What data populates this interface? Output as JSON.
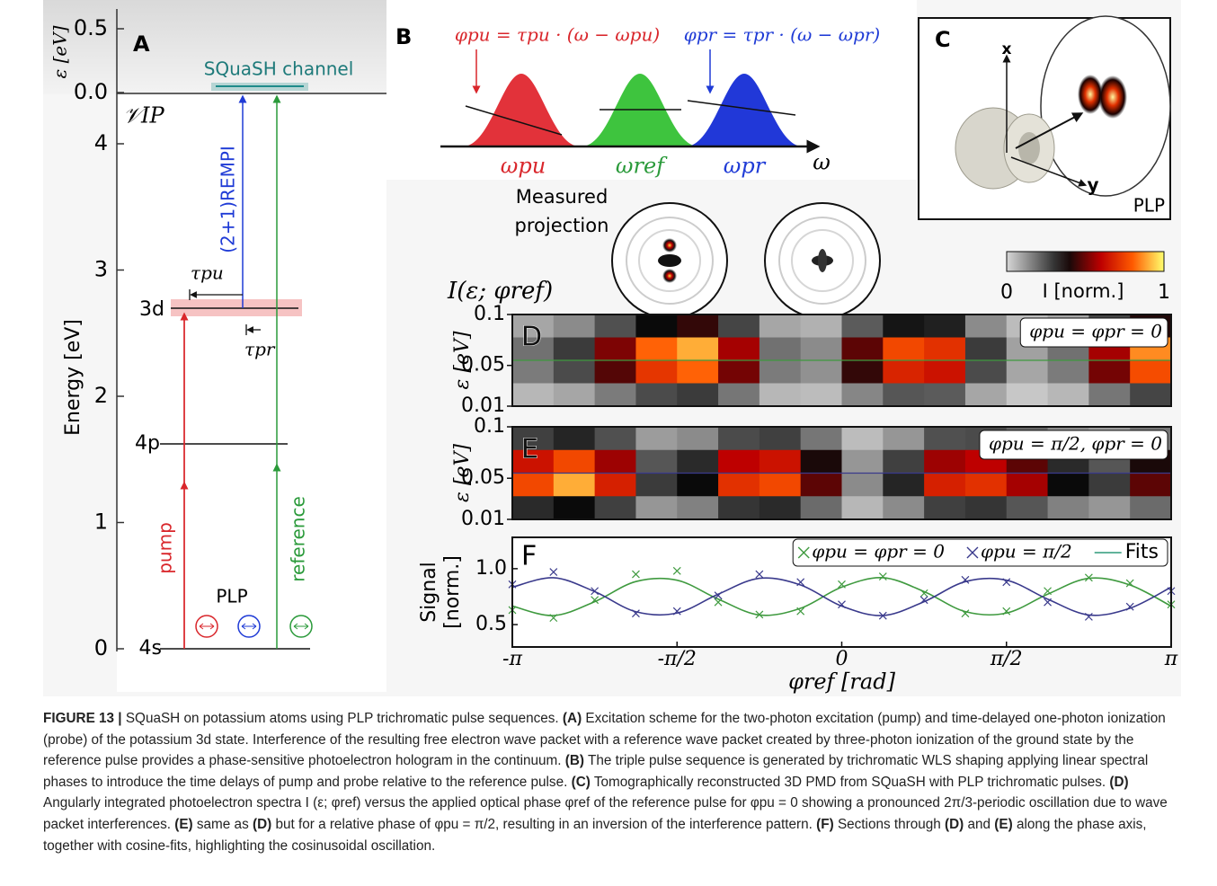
{
  "panel_a": {
    "label": "A",
    "y_label": "Energy [eV]",
    "energy_ticks": [
      0,
      1,
      2,
      3,
      4
    ],
    "eps_label": "ε [eV]",
    "eps_ticks": [
      {
        "value": 0,
        "label": "0.0"
      },
      {
        "value": 0.5,
        "label": "0.5"
      }
    ],
    "ionization_label": "𝒱IP",
    "channel_label": "SQuaSH channel",
    "rempi_label": "(2+1)REMPI",
    "tau_pu": "τpu",
    "tau_pr": "τpr",
    "levels": [
      "3d",
      "4p",
      "4s"
    ],
    "pump_label": "pump",
    "reference_label": "reference",
    "plp_label": "PLP"
  },
  "panel_b": {
    "label": "B",
    "phase_pu": "φpu = τpu · (ω − ωpu)",
    "phase_pr": "φpr = τpr · (ω − ωpr)",
    "omega_pu": "ωpu",
    "omega_ref": "ωref",
    "omega_pr": "ωpr",
    "omega": "ω",
    "measured": [
      "Measured",
      "projection"
    ]
  },
  "panel_c": {
    "label": "C",
    "x_axis": "x",
    "y_axis": "y",
    "plp_label": "PLP"
  },
  "spectrum_label": "I(ε; φref)",
  "colorbar": {
    "label": "I [norm.]",
    "ticks": [
      0,
      1
    ]
  },
  "chart_data": [
    {
      "type": "heatmap",
      "label": "D",
      "annotation": "φpu = φpr = 0",
      "y_label": "ε [eV]",
      "ylim": [
        0.01,
        0.1
      ],
      "yticks": [
        0.1,
        0.05,
        0.01
      ],
      "xlim": [
        -3.1416,
        3.1416
      ],
      "z": [
        [
          0.09,
          0.14,
          0.25,
          0.38,
          0.43,
          0.27,
          0.09,
          0.07,
          0.23,
          0.36,
          0.34,
          0.14,
          0.05,
          0.09,
          0.27,
          0.41
        ],
        [
          0.19,
          0.29,
          0.52,
          0.81,
          0.9,
          0.57,
          0.19,
          0.14,
          0.48,
          0.76,
          0.71,
          0.29,
          0.1,
          0.19,
          0.57,
          0.86
        ],
        [
          0.17,
          0.26,
          0.47,
          0.72,
          0.81,
          0.51,
          0.17,
          0.13,
          0.43,
          0.68,
          0.64,
          0.26,
          0.09,
          0.17,
          0.51,
          0.77
        ],
        [
          0.06,
          0.09,
          0.17,
          0.26,
          0.29,
          0.18,
          0.06,
          0.05,
          0.15,
          0.24,
          0.23,
          0.09,
          0.03,
          0.06,
          0.18,
          0.27
        ]
      ]
    },
    {
      "type": "heatmap",
      "label": "E",
      "annotation": "φpu = π/2, φpr = 0",
      "y_label": "ε [eV]",
      "ylim": [
        0.01,
        0.1
      ],
      "yticks": [
        0.1,
        0.05,
        0.01
      ],
      "xlim": [
        -3.1416,
        3.1416
      ],
      "z": [
        [
          0.28,
          0.33,
          0.25,
          0.11,
          0.14,
          0.26,
          0.28,
          0.18,
          0.05,
          0.12,
          0.25,
          0.26,
          0.21,
          0.14,
          0.11,
          0.18
        ],
        [
          0.64,
          0.76,
          0.56,
          0.24,
          0.32,
          0.6,
          0.64,
          0.4,
          0.12,
          0.28,
          0.56,
          0.6,
          0.48,
          0.32,
          0.24,
          0.4
        ],
        [
          0.76,
          0.9,
          0.67,
          0.29,
          0.38,
          0.71,
          0.76,
          0.48,
          0.14,
          0.33,
          0.67,
          0.71,
          0.57,
          0.38,
          0.29,
          0.48
        ],
        [
          0.32,
          0.38,
          0.28,
          0.12,
          0.16,
          0.3,
          0.32,
          0.2,
          0.06,
          0.14,
          0.28,
          0.3,
          0.24,
          0.16,
          0.12,
          0.2
        ]
      ]
    },
    {
      "type": "scatter",
      "label": "F",
      "y_label": [
        "Signal",
        "[norm.]"
      ],
      "x_label": "φref [rad]",
      "xlim": [
        -3.1416,
        3.1416
      ],
      "ylim": [
        0.3,
        1.28
      ],
      "xticks": [
        {
          "value": -3.1416,
          "label": "-π"
        },
        {
          "value": -1.5708,
          "label": "-π/2"
        },
        0,
        {
          "value": 1.5708,
          "label": "π/2"
        },
        {
          "value": 3.1416,
          "label": "π"
        }
      ],
      "yticks": [
        0.5,
        {
          "value": 1,
          "label": "1.0"
        }
      ],
      "x": [
        -3.1416,
        -2.7489,
        -2.3562,
        -1.9635,
        -1.5708,
        -1.1781,
        -0.7854,
        -0.3927,
        0,
        0.3927,
        0.7854,
        1.1781,
        1.5708,
        1.9635,
        2.3562,
        2.7489,
        3.1416
      ],
      "series": [
        {
          "name": "φpu = φpr = 0",
          "color": "#3f9a3f",
          "values": [
            0.63,
            0.56,
            0.72,
            0.95,
            0.98,
            0.7,
            0.59,
            0.62,
            0.86,
            0.93,
            0.78,
            0.6,
            0.62,
            0.8,
            0.92,
            0.87,
            0.68
          ]
        },
        {
          "name": "φpu = π/2",
          "color": "#3a3a8c",
          "values": [
            0.86,
            0.97,
            0.8,
            0.6,
            0.62,
            0.76,
            0.95,
            0.88,
            0.68,
            0.58,
            0.72,
            0.9,
            0.88,
            0.7,
            0.57,
            0.66,
            0.8
          ]
        }
      ],
      "fits": {
        "name": "Fits",
        "color": "#2f9a7a",
        "series": [
          {
            "color": "#3f9a3f",
            "values": [
              0.666,
              0.581,
              0.705,
              0.885,
              0.897,
              0.728,
              0.586,
              0.646,
              0.835,
              0.919,
              0.795,
              0.616,
              0.603,
              0.772,
              0.914,
              0.854,
              0.665
            ]
          },
          {
            "color": "#3a3a8c",
            "values": [
              0.834,
              0.919,
              0.795,
              0.615,
              0.603,
              0.772,
              0.914,
              0.854,
              0.665,
              0.581,
              0.705,
              0.884,
              0.897,
              0.728,
              0.586,
              0.646,
              0.835
            ]
          }
        ]
      }
    }
  ],
  "caption": {
    "runs": [
      {
        "text": "FIGURE 13 | ",
        "bold": true
      },
      {
        "text": "SQuaSH on potassium atoms using PLP trichromatic pulse sequences. ",
        "bold": false
      },
      {
        "text": "(A)",
        "bold": true
      },
      {
        "text": " Excitation scheme for the two-photon excitation (pump) and time-delayed one-photon ionization (probe) of the potassium 3d state. Interference of the resulting free electron wave packet with a reference wave packet created by three-photon ionization of the ground state by the reference pulse provides a phase-sensitive photoelectron hologram in the continuum. ",
        "bold": false
      },
      {
        "text": "(B)",
        "bold": true
      },
      {
        "text": " The triple pulse sequence is generated by trichromatic WLS shaping applying linear spectral phases to introduce the time delays of pump and probe relative to the reference pulse. ",
        "bold": false
      },
      {
        "text": "(C)",
        "bold": true
      },
      {
        "text": " Tomographically reconstructed 3D PMD from SQuaSH with PLP trichromatic pulses. ",
        "bold": false
      },
      {
        "text": "(D)",
        "bold": true
      },
      {
        "text": " Angularly integrated photoelectron spectra I (ε; φref) versus the applied optical phase φref of the reference pulse for φpu = 0 showing a pronounced 2π/3-periodic oscillation due to wave packet interferences. ",
        "bold": false
      },
      {
        "text": "(E)",
        "bold": true
      },
      {
        "text": " same as ",
        "bold": false
      },
      {
        "text": "(D)",
        "bold": true
      },
      {
        "text": " but for a relative phase of φpu = π/2, resulting in an inversion of the interference pattern. ",
        "bold": false
      },
      {
        "text": "(F)",
        "bold": true
      },
      {
        "text": " Sections through ",
        "bold": false
      },
      {
        "text": "(D)",
        "bold": true
      },
      {
        "text": " and ",
        "bold": false
      },
      {
        "text": "(E)",
        "bold": true
      },
      {
        "text": " along the phase axis, together with cosine-fits, highlighting the cosinusoidal oscillation.",
        "bold": false
      }
    ]
  }
}
